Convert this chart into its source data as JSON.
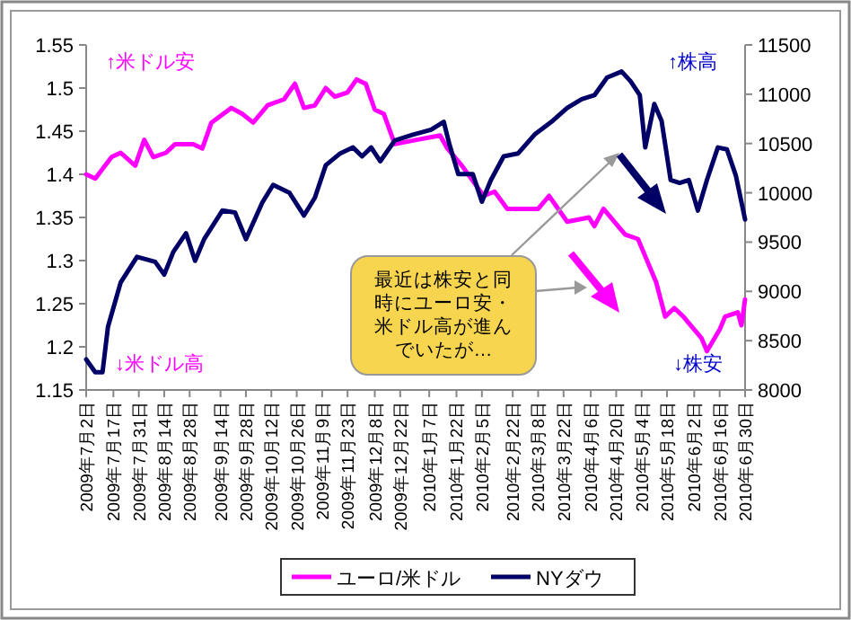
{
  "chart_data": {
    "type": "line",
    "x": [
      "2009-07-02",
      "2009-07-07",
      "2009-07-16",
      "2009-07-21",
      "2009-07-29",
      "2009-08-03",
      "2009-08-08",
      "2009-08-15",
      "2009-08-20",
      "2009-08-30",
      "2009-09-04",
      "2009-09-09",
      "2009-09-20",
      "2009-09-26",
      "2009-10-02",
      "2009-10-10",
      "2009-10-19",
      "2009-10-25",
      "2009-10-30",
      "2009-11-05",
      "2009-11-11",
      "2009-11-16",
      "2009-11-23",
      "2009-11-28",
      "2009-12-03",
      "2009-12-08",
      "2009-12-13",
      "2009-12-19",
      "2009-12-31",
      "2010-01-13",
      "2010-01-17",
      "2010-01-25",
      "2010-02-06",
      "2010-02-12",
      "2010-02-19",
      "2010-02-27",
      "2010-03-08",
      "2010-03-14",
      "2010-03-24",
      "2010-04-05",
      "2010-04-08",
      "2010-04-13",
      "2010-04-25",
      "2010-05-02",
      "2010-05-05",
      "2010-05-12",
      "2010-05-17",
      "2010-05-22",
      "2010-05-27",
      "2010-06-06",
      "2010-06-09",
      "2010-06-16",
      "2010-06-19",
      "2010-06-26",
      "2010-06-28",
      "2010-06-30"
    ],
    "xlim": [
      "2009-07-02",
      "2010-06-30"
    ],
    "xticks": [
      {
        "value": "2009-07-02",
        "label": "2009年7月2日"
      },
      {
        "value": "2009-07-17",
        "label": "2009年7月17日"
      },
      {
        "value": "2009-07-31",
        "label": "2009年7月31日"
      },
      {
        "value": "2009-08-14",
        "label": "2009年8月14日"
      },
      {
        "value": "2009-08-28",
        "label": "2009年8月28日"
      },
      {
        "value": "2009-09-14",
        "label": "2009年9月14日"
      },
      {
        "value": "2009-09-28",
        "label": "2009年9月28日"
      },
      {
        "value": "2009-10-12",
        "label": "2009年10月12日"
      },
      {
        "value": "2009-10-26",
        "label": "2009年10月26日"
      },
      {
        "value": "2009-11-09",
        "label": "2009年11月9日"
      },
      {
        "value": "2009-11-23",
        "label": "2009年11月23日"
      },
      {
        "value": "2009-12-08",
        "label": "2009年12月8日"
      },
      {
        "value": "2009-12-22",
        "label": "2009年12月22日"
      },
      {
        "value": "2010-01-07",
        "label": "2010年1月7日"
      },
      {
        "value": "2010-01-22",
        "label": "2010年1月22日"
      },
      {
        "value": "2010-02-05",
        "label": "2010年2月5日"
      },
      {
        "value": "2010-02-22",
        "label": "2010年2月22日"
      },
      {
        "value": "2010-03-08",
        "label": "2010年3月8日"
      },
      {
        "value": "2010-03-22",
        "label": "2010年3月22日"
      },
      {
        "value": "2010-04-06",
        "label": "2010年4月6日"
      },
      {
        "value": "2010-04-20",
        "label": "2010年4月20日"
      },
      {
        "value": "2010-05-04",
        "label": "2010年5月4日"
      },
      {
        "value": "2010-05-18",
        "label": "2010年5月18日"
      },
      {
        "value": "2010-06-02",
        "label": "2010年6月2日"
      },
      {
        "value": "2010-06-16",
        "label": "2010年6月16日"
      },
      {
        "value": "2010-06-30",
        "label": "2010年6月30日"
      }
    ],
    "ylim": [
      1.15,
      1.55
    ],
    "yticks": [
      1.15,
      1.2,
      1.25,
      1.3,
      1.35,
      1.4,
      1.45,
      1.5,
      1.55
    ],
    "y2lim": [
      8000,
      11500
    ],
    "y2ticks": [
      8000,
      8500,
      9000,
      9500,
      10000,
      10500,
      11000,
      11500
    ],
    "series": [
      {
        "name": "ユーロ/米ドル",
        "color": "#ff00ff",
        "values": [
          1.4,
          1.395,
          1.42,
          1.425,
          1.41,
          1.44,
          1.42,
          1.425,
          1.435,
          1.435,
          1.43,
          1.46,
          1.477,
          1.47,
          1.46,
          1.48,
          1.487,
          1.505,
          1.477,
          1.48,
          1.5,
          1.49,
          1.495,
          1.51,
          1.505,
          1.475,
          1.47,
          1.435,
          1.44,
          1.445,
          1.43,
          1.41,
          1.375,
          1.38,
          1.36,
          1.36,
          1.36,
          1.375,
          1.345,
          1.35,
          1.34,
          1.36,
          1.33,
          1.325,
          1.31,
          1.275,
          1.235,
          1.245,
          1.235,
          1.21,
          1.195,
          1.22,
          1.235,
          1.24,
          1.225,
          1.255
        ]
      },
      {
        "name": "NYダウ",
        "color": "#000066",
        "axis": "y2",
        "x": [
          "2009-07-02",
          "2009-07-07",
          "2009-07-11",
          "2009-07-14",
          "2009-07-21",
          "2009-07-30",
          "2009-08-09",
          "2009-08-14",
          "2009-08-19",
          "2009-08-26",
          "2009-08-31",
          "2009-09-05",
          "2009-09-15",
          "2009-09-22",
          "2009-09-28",
          "2009-10-07",
          "2009-10-13",
          "2009-10-22",
          "2009-10-30",
          "2009-11-05",
          "2009-11-11",
          "2009-11-19",
          "2009-11-26",
          "2009-12-01",
          "2009-12-06",
          "2009-12-11",
          "2009-12-19",
          "2009-12-29",
          "2010-01-08",
          "2010-01-15",
          "2010-01-18",
          "2010-01-23",
          "2010-01-31",
          "2010-02-05",
          "2010-02-10",
          "2010-02-17",
          "2010-02-25",
          "2010-03-06",
          "2010-03-16",
          "2010-03-24",
          "2010-04-01",
          "2010-04-08",
          "2010-04-15",
          "2010-04-23",
          "2010-04-28",
          "2010-05-03",
          "2010-05-06",
          "2010-05-11",
          "2010-05-15",
          "2010-05-20",
          "2010-05-25",
          "2010-05-30",
          "2010-06-04",
          "2010-06-09",
          "2010-06-15",
          "2010-06-20",
          "2010-06-25",
          "2010-06-30"
        ],
        "values": [
          8310,
          8180,
          8180,
          8640,
          9090,
          9350,
          9300,
          9170,
          9400,
          9590,
          9310,
          9530,
          9820,
          9800,
          9530,
          9900,
          10080,
          10000,
          9770,
          9950,
          10280,
          10400,
          10460,
          10370,
          10460,
          10320,
          10530,
          10590,
          10640,
          10720,
          10500,
          10190,
          10190,
          9910,
          10130,
          10370,
          10400,
          10590,
          10730,
          10860,
          10950,
          10990,
          11170,
          11230,
          11130,
          10990,
          10460,
          10900,
          10730,
          10130,
          10100,
          10130,
          9820,
          10130,
          10460,
          10440,
          10170,
          9730
        ]
      }
    ],
    "legend": "bottom",
    "annotations": [
      "↑米ドル安",
      "↓米ドル高",
      "↑株高",
      "↓株安",
      "最近は株安と同時にユーロ安・米ドル高が進んでいたが…"
    ]
  }
}
